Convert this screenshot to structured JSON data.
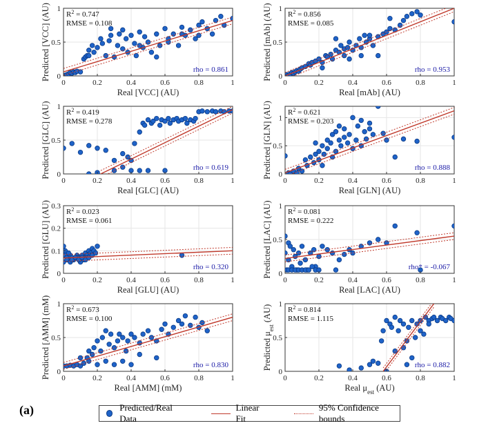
{
  "figure_label": "(a)",
  "legend": {
    "data_label": "Predicted/Real Data",
    "fit_label": "Linear Fit",
    "ci_label": "95% Confidence bounds"
  },
  "colors": {
    "points": "#1f63c8",
    "fit": "#c0392b",
    "rho_text": "#1a1aa6"
  },
  "chart_data": [
    {
      "type": "scatter",
      "xlabel": "Real [VCC] (AU)",
      "ylabel": "Predicted [VCC] (AU)",
      "xlim": [
        0,
        1
      ],
      "ylim": [
        0,
        1
      ],
      "xticks": [
        "0",
        "0.2",
        "0.4",
        "0.6",
        "0.8",
        "1"
      ],
      "yticks": [
        "0",
        "0.5",
        "1"
      ],
      "r2": "R² = 0.747",
      "rmse": "RMSE = 0.108",
      "rho": "rho = 0.861",
      "fit": [
        0.0,
        0.06,
        1.0,
        0.82
      ],
      "x": [
        0.0,
        0.01,
        0.02,
        0.03,
        0.04,
        0.05,
        0.06,
        0.07,
        0.08,
        0.1,
        0.12,
        0.13,
        0.14,
        0.15,
        0.17,
        0.18,
        0.2,
        0.22,
        0.23,
        0.25,
        0.27,
        0.28,
        0.3,
        0.32,
        0.33,
        0.35,
        0.37,
        0.38,
        0.4,
        0.42,
        0.43,
        0.45,
        0.47,
        0.48,
        0.5,
        0.52,
        0.55,
        0.57,
        0.6,
        0.62,
        0.65,
        0.68,
        0.7,
        0.72,
        0.75,
        0.78,
        0.8,
        0.82,
        0.85,
        0.88,
        0.9,
        0.93,
        0.95,
        1.0,
        0.28,
        0.35,
        0.55,
        0.62,
        0.7,
        0.15,
        0.45,
        0.8
      ],
      "y": [
        0.0,
        0.01,
        0.02,
        0.03,
        0.05,
        0.04,
        0.06,
        0.05,
        0.07,
        0.06,
        0.25,
        0.28,
        0.3,
        0.38,
        0.45,
        0.35,
        0.42,
        0.55,
        0.48,
        0.3,
        0.52,
        0.6,
        0.28,
        0.45,
        0.62,
        0.4,
        0.55,
        0.35,
        0.6,
        0.48,
        0.3,
        0.65,
        0.42,
        0.58,
        0.5,
        0.35,
        0.62,
        0.45,
        0.7,
        0.55,
        0.62,
        0.45,
        0.72,
        0.6,
        0.68,
        0.55,
        0.75,
        0.8,
        0.7,
        0.62,
        0.82,
        0.88,
        0.75,
        0.85,
        0.7,
        0.68,
        0.28,
        0.5,
        0.62,
        0.3,
        0.45,
        0.6
      ]
    },
    {
      "type": "scatter",
      "xlabel": "Real [mAb] (AU)",
      "ylabel": "Predicted [mAb] (AU)",
      "xlim": [
        0,
        1
      ],
      "ylim": [
        0,
        1
      ],
      "xticks": [
        "0",
        "0.2",
        "0.4",
        "0.6",
        "0.8",
        "1"
      ],
      "yticks": [
        "0",
        "0.5",
        "1"
      ],
      "r2": "R² = 0.856",
      "rmse": "RMSE = 0.085",
      "rho": "rho = 0.953",
      "fit": [
        0.0,
        0.0,
        1.0,
        1.0
      ],
      "x": [
        0.0,
        0.01,
        0.02,
        0.03,
        0.04,
        0.05,
        0.06,
        0.07,
        0.08,
        0.09,
        0.1,
        0.12,
        0.14,
        0.15,
        0.16,
        0.18,
        0.2,
        0.22,
        0.24,
        0.25,
        0.27,
        0.28,
        0.3,
        0.32,
        0.33,
        0.35,
        0.37,
        0.38,
        0.4,
        0.42,
        0.44,
        0.45,
        0.47,
        0.48,
        0.5,
        0.52,
        0.55,
        0.58,
        0.6,
        0.62,
        0.65,
        0.68,
        0.7,
        0.72,
        0.75,
        0.78,
        0.8,
        1.0,
        0.3,
        0.35,
        0.45,
        0.5,
        0.55,
        0.22,
        0.62,
        0.38
      ],
      "y": [
        0.0,
        0.02,
        0.01,
        0.03,
        0.05,
        0.04,
        0.06,
        0.08,
        0.07,
        0.1,
        0.12,
        0.14,
        0.18,
        0.16,
        0.2,
        0.22,
        0.25,
        0.2,
        0.3,
        0.28,
        0.32,
        0.25,
        0.38,
        0.35,
        0.45,
        0.4,
        0.42,
        0.5,
        0.38,
        0.45,
        0.55,
        0.42,
        0.6,
        0.5,
        0.55,
        0.45,
        0.58,
        0.62,
        0.65,
        0.7,
        0.68,
        0.75,
        0.82,
        0.88,
        0.92,
        0.95,
        0.9,
        0.8,
        0.55,
        0.3,
        0.3,
        0.6,
        0.3,
        0.12,
        0.85,
        0.25
      ]
    },
    {
      "type": "scatter",
      "xlabel": "Real [GLC] (AU)",
      "ylabel": "Predicted [GLC] (AU)",
      "xlim": [
        0,
        1
      ],
      "ylim": [
        0,
        1
      ],
      "xticks": [
        "0",
        "0.2",
        "0.4",
        "0.6",
        "0.8",
        "1"
      ],
      "yticks": [
        "0",
        "0.5",
        "1"
      ],
      "r2": "R² = 0.419",
      "rmse": "RMSE = 0.278",
      "rho": "rho = 0.619",
      "fit": [
        0.22,
        0.0,
        1.0,
        0.95
      ],
      "x": [
        0.0,
        0.05,
        0.1,
        0.15,
        0.2,
        0.25,
        0.3,
        0.35,
        0.38,
        0.4,
        0.42,
        0.45,
        0.47,
        0.48,
        0.5,
        0.52,
        0.53,
        0.55,
        0.57,
        0.58,
        0.6,
        0.62,
        0.63,
        0.65,
        0.67,
        0.68,
        0.7,
        0.72,
        0.73,
        0.75,
        0.77,
        0.78,
        0.8,
        0.82,
        0.85,
        0.88,
        0.9,
        0.93,
        0.95,
        0.98,
        1.0,
        0.2,
        0.3,
        0.4,
        0.45,
        0.6,
        0.15,
        0.35,
        0.5
      ],
      "y": [
        0.38,
        0.45,
        0.32,
        0.42,
        0.38,
        0.35,
        0.2,
        0.3,
        0.25,
        0.2,
        0.45,
        0.62,
        0.75,
        0.72,
        0.8,
        0.75,
        0.78,
        0.82,
        0.72,
        0.8,
        0.78,
        0.82,
        0.75,
        0.8,
        0.82,
        0.78,
        0.8,
        0.82,
        0.75,
        0.8,
        0.78,
        0.82,
        0.92,
        0.93,
        0.92,
        0.93,
        0.92,
        0.93,
        0.92,
        0.93,
        0.93,
        0.02,
        0.05,
        0.05,
        0.05,
        0.05,
        0.0,
        0.1,
        0.05
      ]
    },
    {
      "type": "scatter",
      "xlabel": "Real [GLN] (AU)",
      "ylabel": "Predicted [GLN] (AU)",
      "xlim": [
        0,
        1
      ],
      "ylim": [
        0,
        1.2
      ],
      "xticks": [
        "0",
        "0.2",
        "0.4",
        "0.6",
        "0.8",
        "1"
      ],
      "yticks": [
        "0",
        "0.5",
        "1"
      ],
      "r2": "R² = 0.621",
      "rmse": "RMSE = 0.203",
      "rho": "rho = 0.888",
      "fit": [
        0.0,
        0.02,
        1.0,
        1.12
      ],
      "x": [
        0.0,
        0.02,
        0.03,
        0.05,
        0.07,
        0.08,
        0.1,
        0.12,
        0.13,
        0.15,
        0.17,
        0.18,
        0.2,
        0.2,
        0.22,
        0.23,
        0.25,
        0.25,
        0.27,
        0.28,
        0.3,
        0.3,
        0.32,
        0.33,
        0.35,
        0.35,
        0.37,
        0.38,
        0.4,
        0.42,
        0.43,
        0.45,
        0.47,
        0.48,
        0.5,
        0.52,
        0.55,
        0.58,
        0.6,
        0.65,
        0.7,
        0.78,
        1.0,
        0.22,
        0.28,
        0.32,
        0.4,
        0.45,
        0.5,
        0.18
      ],
      "y": [
        0.32,
        0.02,
        0.0,
        0.05,
        0.02,
        0.1,
        0.05,
        0.25,
        0.15,
        0.3,
        0.2,
        0.35,
        0.4,
        0.25,
        0.5,
        0.35,
        0.6,
        0.45,
        0.55,
        0.7,
        0.4,
        0.75,
        0.6,
        0.5,
        0.65,
        0.8,
        0.55,
        0.7,
        0.45,
        0.6,
        0.85,
        0.5,
        0.75,
        0.62,
        0.9,
        0.7,
        1.2,
        0.72,
        0.6,
        0.3,
        0.62,
        0.58,
        0.65,
        0.15,
        0.3,
        0.85,
        1.0,
        0.95,
        0.8,
        0.55
      ]
    },
    {
      "type": "scatter",
      "xlabel": "Real [GLU] (AU)",
      "ylabel": "Predicted [GLU] (AU)",
      "xlim": [
        0,
        1
      ],
      "ylim": [
        0,
        0.3
      ],
      "xticks": [
        "0",
        "0.2",
        "0.4",
        "0.6",
        "0.8",
        "1"
      ],
      "yticks": [
        "0",
        "0.1",
        "0.2",
        "0.3"
      ],
      "r2": "R² = 0.023",
      "rmse": "RMSE = 0.061",
      "rho": "rho = 0.320",
      "fit": [
        0.0,
        0.068,
        1.0,
        0.1
      ],
      "x": [
        0.0,
        0.01,
        0.02,
        0.03,
        0.04,
        0.05,
        0.06,
        0.07,
        0.08,
        0.09,
        0.1,
        0.11,
        0.12,
        0.13,
        0.14,
        0.15,
        0.16,
        0.17,
        0.18,
        0.2,
        0.0,
        0.02,
        0.04,
        0.06,
        0.08,
        0.1,
        0.12,
        0.14,
        0.16,
        0.01,
        0.03,
        0.05,
        0.07,
        0.09,
        0.11,
        0.13,
        0.15,
        0.17,
        0.19,
        0.7
      ],
      "y": [
        0.12,
        0.08,
        0.07,
        0.06,
        0.08,
        0.07,
        0.06,
        0.07,
        0.08,
        0.07,
        0.06,
        0.08,
        0.07,
        0.09,
        0.08,
        0.1,
        0.09,
        0.11,
        0.1,
        0.12,
        0.05,
        0.06,
        0.05,
        0.06,
        0.07,
        0.05,
        0.06,
        0.07,
        0.08,
        0.1,
        0.09,
        0.06,
        0.07,
        0.06,
        0.07,
        0.06,
        0.07,
        0.08,
        0.09,
        0.08
      ]
    },
    {
      "type": "scatter",
      "xlabel": "Real [LAC] (AU)",
      "ylabel": "Predicted [LAC] (AU)",
      "xlim": [
        0,
        1
      ],
      "ylim": [
        0,
        1
      ],
      "xticks": [
        "0",
        "0.2",
        "0.4",
        "0.6",
        "0.8",
        "1"
      ],
      "yticks": [
        "0",
        "0.5",
        "1"
      ],
      "r2": "R² = 0.081",
      "rmse": "RMSE = 0.222",
      "rho": "rho* = -0.067",
      "fit": [
        0.0,
        0.22,
        1.0,
        0.55
      ],
      "x": [
        0.0,
        0.0,
        0.01,
        0.02,
        0.02,
        0.03,
        0.04,
        0.05,
        0.06,
        0.07,
        0.08,
        0.09,
        0.1,
        0.12,
        0.13,
        0.15,
        0.17,
        0.18,
        0.2,
        0.22,
        0.25,
        0.28,
        0.3,
        0.32,
        0.35,
        0.38,
        0.4,
        0.45,
        0.5,
        0.55,
        0.6,
        0.65,
        0.78,
        0.8,
        1.0,
        0.02,
        0.04,
        0.06,
        0.08,
        0.1,
        0.12,
        0.14,
        0.16,
        0.18,
        0.2
      ],
      "y": [
        0.55,
        0.3,
        0.05,
        0.45,
        0.2,
        0.4,
        0.1,
        0.35,
        0.25,
        0.05,
        0.3,
        0.15,
        0.4,
        0.2,
        0.05,
        0.3,
        0.35,
        0.1,
        0.25,
        0.4,
        0.35,
        0.3,
        0.05,
        0.2,
        0.28,
        0.35,
        0.3,
        0.4,
        0.45,
        0.5,
        0.45,
        0.7,
        0.6,
        0.05,
        0.7,
        0.05,
        0.05,
        0.05,
        0.05,
        0.05,
        0.05,
        0.05,
        0.1,
        0.05,
        0.05
      ]
    },
    {
      "type": "scatter",
      "xlabel": "Real [AMM] (mM)",
      "ylabel": "Predicted [AMM] (mM)",
      "xlim": [
        0,
        1
      ],
      "ylim": [
        0,
        1
      ],
      "xticks": [
        "0",
        "0.2",
        "0.4",
        "0.6",
        "0.8",
        "1"
      ],
      "yticks": [
        "0",
        "0.5",
        "1"
      ],
      "r2": "R² = 0.673",
      "rmse": "RMSE = 0.100",
      "rho": "rho = 0.830",
      "fit": [
        0.0,
        0.08,
        1.0,
        0.8
      ],
      "x": [
        0.0,
        0.02,
        0.04,
        0.06,
        0.08,
        0.1,
        0.12,
        0.14,
        0.15,
        0.17,
        0.18,
        0.2,
        0.22,
        0.23,
        0.25,
        0.27,
        0.28,
        0.3,
        0.32,
        0.33,
        0.35,
        0.37,
        0.38,
        0.4,
        0.42,
        0.45,
        0.47,
        0.5,
        0.52,
        0.55,
        0.58,
        0.6,
        0.62,
        0.65,
        0.68,
        0.7,
        0.72,
        0.75,
        0.78,
        0.8,
        0.82,
        0.85,
        0.1,
        0.15,
        0.2,
        0.25,
        0.3,
        0.35,
        0.4,
        0.45,
        0.55
      ],
      "y": [
        0.08,
        0.08,
        0.09,
        0.08,
        0.1,
        0.08,
        0.12,
        0.2,
        0.3,
        0.25,
        0.35,
        0.45,
        0.3,
        0.5,
        0.6,
        0.4,
        0.55,
        0.35,
        0.45,
        0.55,
        0.5,
        0.3,
        0.45,
        0.55,
        0.5,
        0.42,
        0.55,
        0.6,
        0.5,
        0.45,
        0.62,
        0.7,
        0.55,
        0.65,
        0.75,
        0.7,
        0.82,
        0.68,
        0.8,
        0.65,
        0.72,
        0.6,
        0.2,
        0.15,
        0.1,
        0.15,
        0.1,
        0.15,
        0.1,
        0.25,
        0.2
      ]
    },
    {
      "type": "scatter",
      "xlabel": "Real μ_est (AU)",
      "ylabel": "Predicted μ_est (AU)",
      "xlim": [
        0,
        1
      ],
      "ylim": [
        0,
        1
      ],
      "xticks": [
        "0",
        "0.2",
        "0.4",
        "0.6",
        "0.8",
        "1"
      ],
      "yticks": [
        "0",
        "0.5",
        "1"
      ],
      "r2": "R² = 0.814",
      "rmse": "RMSE = 1.115",
      "rho": "rho = 0.882",
      "fit": [
        0.58,
        0.0,
        0.88,
        1.0
      ],
      "x": [
        0.32,
        0.38,
        0.45,
        0.5,
        0.52,
        0.55,
        0.57,
        0.58,
        0.6,
        0.62,
        0.63,
        0.65,
        0.67,
        0.68,
        0.7,
        0.72,
        0.73,
        0.75,
        0.77,
        0.78,
        0.8,
        0.82,
        0.83,
        0.85,
        0.87,
        0.88,
        0.9,
        0.92,
        0.93,
        0.95,
        0.97,
        0.98,
        1.0,
        0.65,
        0.7,
        0.75,
        0.8,
        0.85,
        0.6,
        0.72
      ],
      "y": [
        0.08,
        0.02,
        0.05,
        0.1,
        0.15,
        0.12,
        0.45,
        0.6,
        0.75,
        0.7,
        0.65,
        0.8,
        0.6,
        0.75,
        0.7,
        0.45,
        0.65,
        0.75,
        0.5,
        0.7,
        0.75,
        0.55,
        0.8,
        0.75,
        0.78,
        0.8,
        0.75,
        0.8,
        0.78,
        0.75,
        0.8,
        0.78,
        0.75,
        0.3,
        0.35,
        0.2,
        0.6,
        0.7,
        0.0,
        0.1
      ]
    }
  ]
}
